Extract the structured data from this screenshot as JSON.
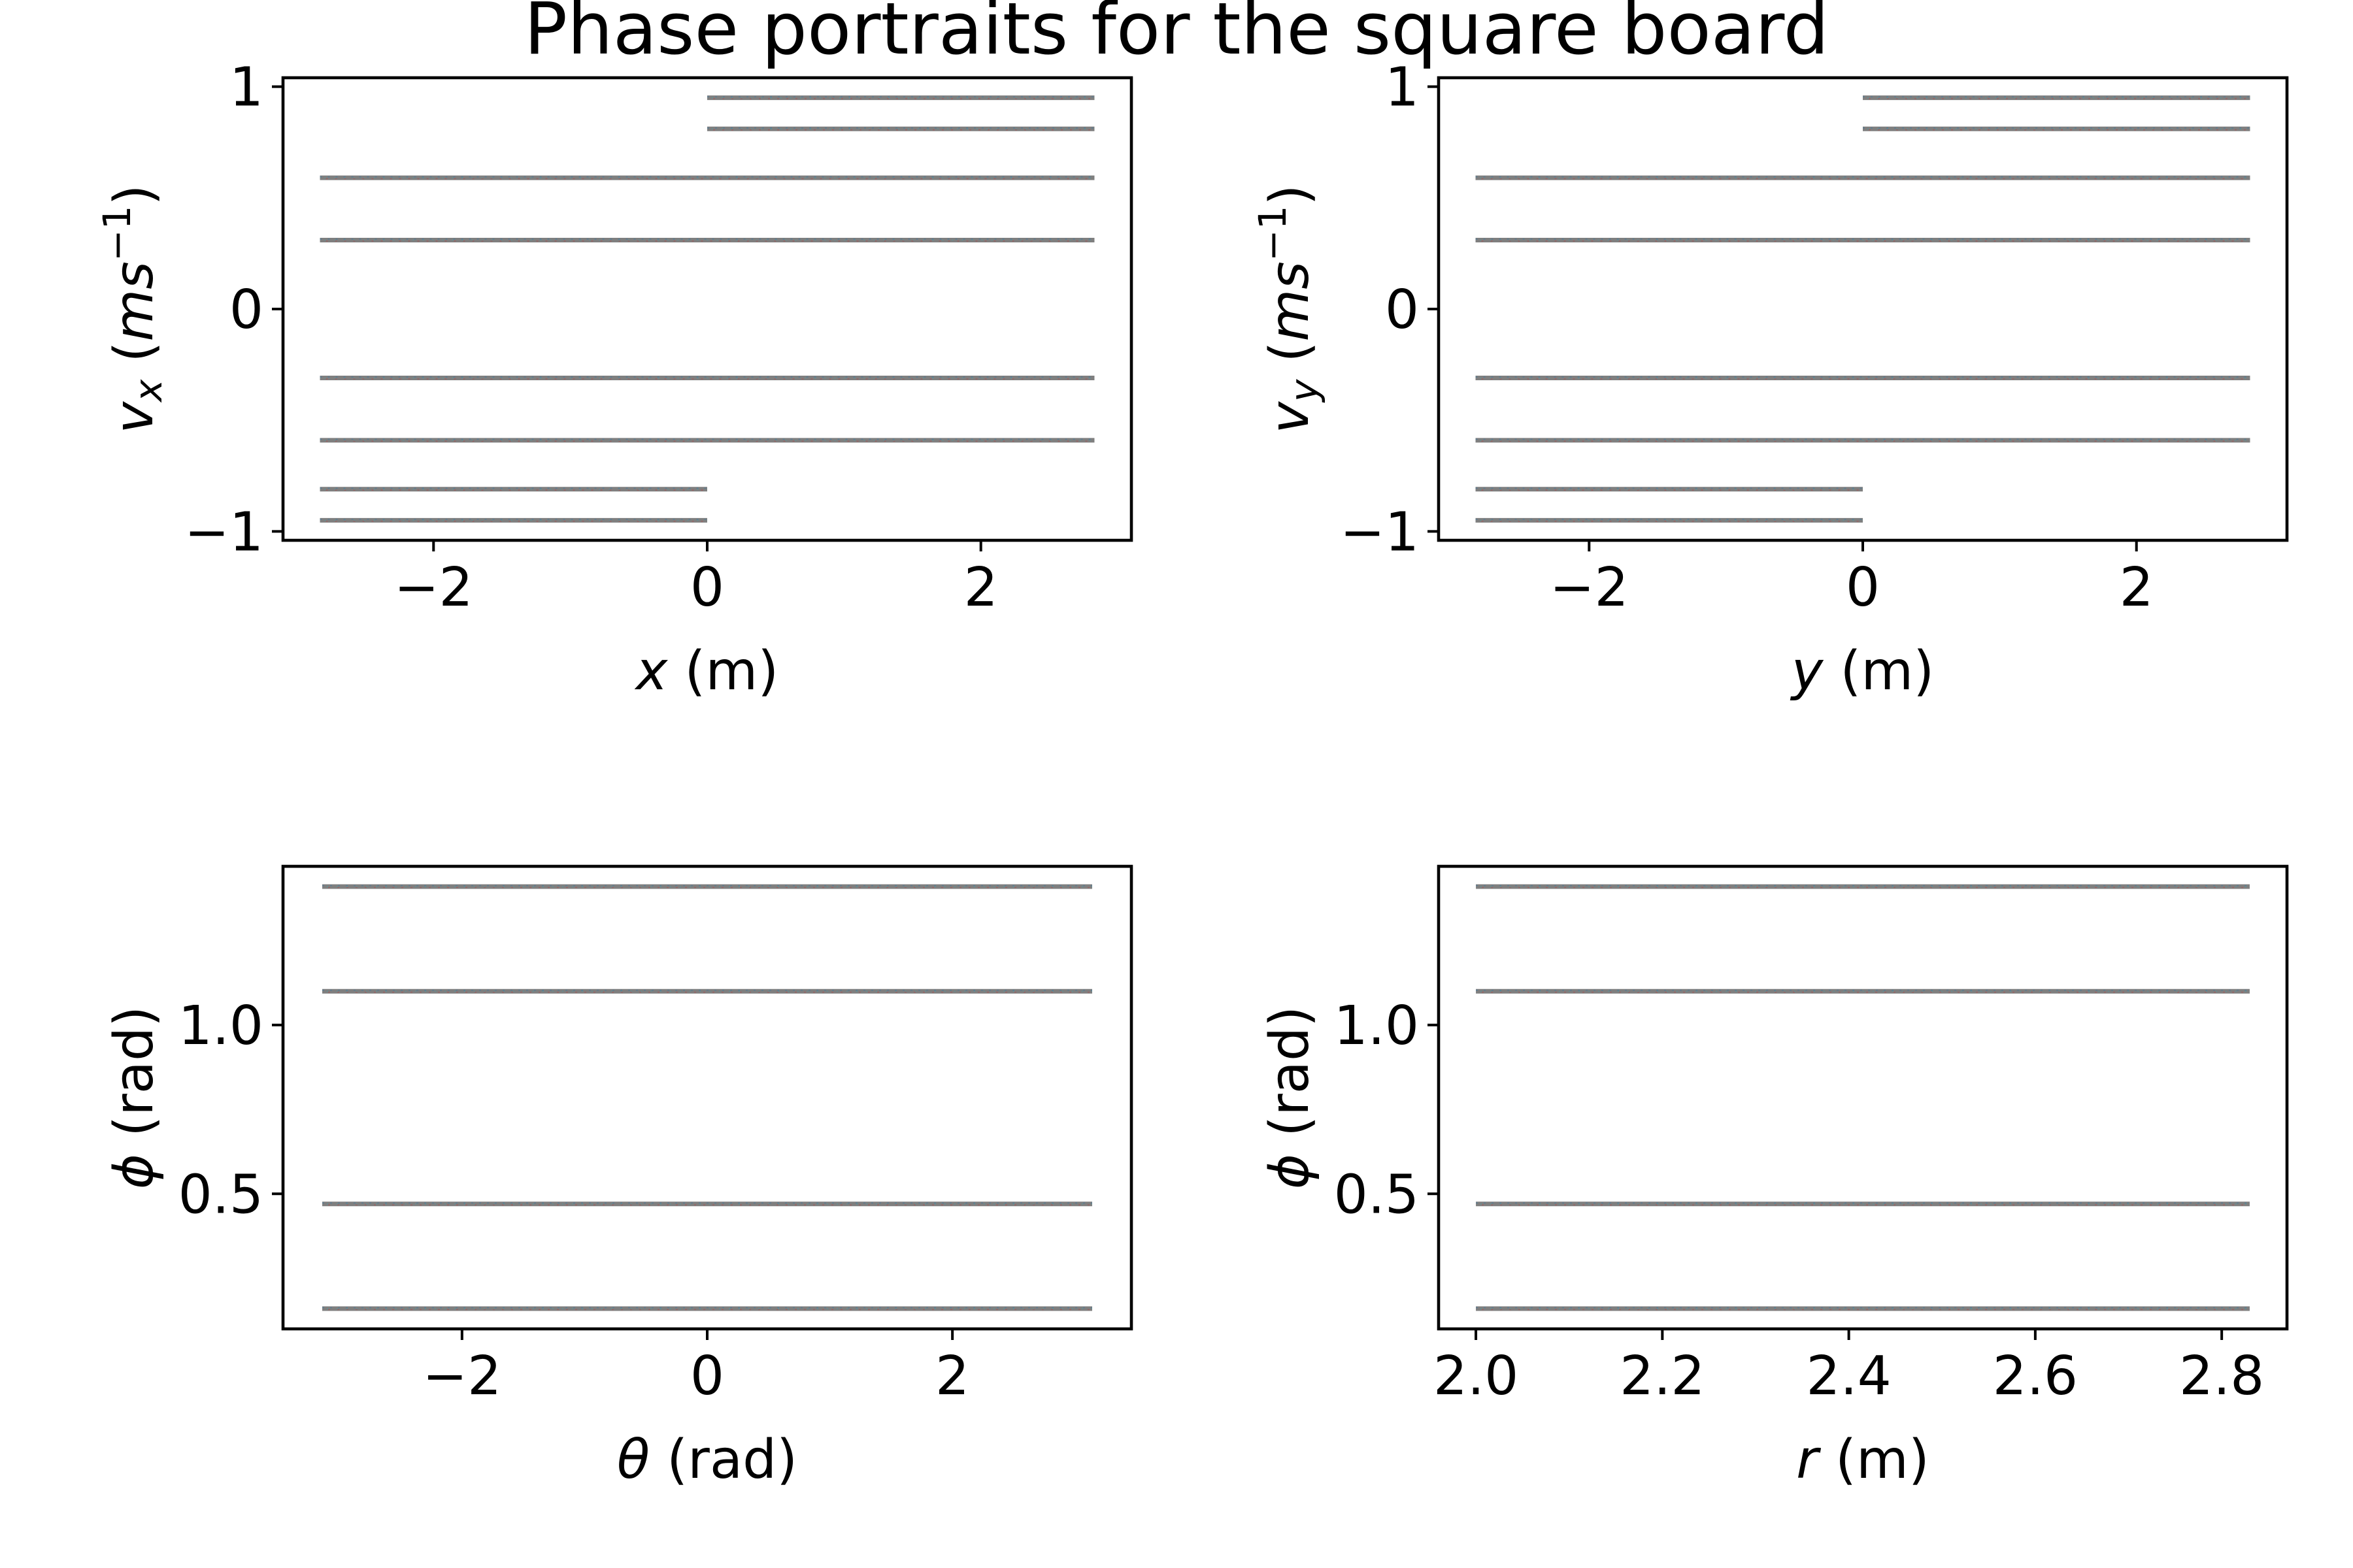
{
  "figure": {
    "title": "Phase portraits for the square board"
  },
  "colors": {
    "trajectory_main": "#7f7f7f",
    "trajectory_tint_a": "#1f77b4",
    "trajectory_tint_b": "#d62728",
    "trajectory_tint_c": "#17becf",
    "frame": "#000000"
  },
  "chart_data": [
    {
      "type": "scatter",
      "id": "vx_vs_x",
      "title": "",
      "xlabel": {
        "var": "x",
        "unit": "(m)"
      },
      "ylabel": {
        "var": "v",
        "sub": "x",
        "unit_open": "(ms",
        "unit_sup": "−1",
        "unit_close": ")"
      },
      "xlim": [
        -3.1,
        3.1
      ],
      "ylim": [
        -1.04,
        1.04
      ],
      "xticks": [
        {
          "v": -2,
          "label": "−2"
        },
        {
          "v": 0,
          "label": "0"
        },
        {
          "v": 2,
          "label": "2"
        }
      ],
      "yticks": [
        {
          "v": -1,
          "label": "−1"
        },
        {
          "v": 0,
          "label": "0"
        },
        {
          "v": 1,
          "label": "1"
        }
      ],
      "segments": [
        {
          "x0": 0.0,
          "x1": 2.83,
          "y": 0.95
        },
        {
          "x0": 0.0,
          "x1": 2.83,
          "y": 0.81
        },
        {
          "x0": -2.83,
          "x1": 2.83,
          "y": 0.59
        },
        {
          "x0": -2.83,
          "x1": 2.83,
          "y": 0.31
        },
        {
          "x0": -2.83,
          "x1": 2.83,
          "y": -0.31
        },
        {
          "x0": -2.83,
          "x1": 2.83,
          "y": -0.59
        },
        {
          "x0": -2.83,
          "x1": 0.0,
          "y": -0.81
        },
        {
          "x0": -2.83,
          "x1": 0.0,
          "y": -0.95
        }
      ]
    },
    {
      "type": "scatter",
      "id": "vy_vs_y",
      "title": "",
      "xlabel": {
        "var": "y",
        "unit": "(m)"
      },
      "ylabel": {
        "var": "v",
        "sub": "y",
        "unit_open": "(ms",
        "unit_sup": "−1",
        "unit_close": ")"
      },
      "xlim": [
        -3.1,
        3.1
      ],
      "ylim": [
        -1.04,
        1.04
      ],
      "xticks": [
        {
          "v": -2,
          "label": "−2"
        },
        {
          "v": 0,
          "label": "0"
        },
        {
          "v": 2,
          "label": "2"
        }
      ],
      "yticks": [
        {
          "v": -1,
          "label": "−1"
        },
        {
          "v": 0,
          "label": "0"
        },
        {
          "v": 1,
          "label": "1"
        }
      ],
      "segments": [
        {
          "x0": 0.0,
          "x1": 2.83,
          "y": 0.95
        },
        {
          "x0": 0.0,
          "x1": 2.83,
          "y": 0.81
        },
        {
          "x0": -2.83,
          "x1": 2.83,
          "y": 0.59
        },
        {
          "x0": -2.83,
          "x1": 2.83,
          "y": 0.31
        },
        {
          "x0": -2.83,
          "x1": 2.83,
          "y": -0.31
        },
        {
          "x0": -2.83,
          "x1": 2.83,
          "y": -0.59
        },
        {
          "x0": -2.83,
          "x1": 0.0,
          "y": -0.81
        },
        {
          "x0": -2.83,
          "x1": 0.0,
          "y": -0.95
        }
      ]
    },
    {
      "type": "scatter",
      "id": "phi_vs_theta",
      "title": "",
      "xlabel": {
        "var": "θ",
        "unit": "(rad)"
      },
      "ylabel": {
        "var": "ϕ",
        "sub": "",
        "unit_open": "(rad)",
        "unit_sup": "",
        "unit_close": ""
      },
      "xlim": [
        -3.46,
        3.46
      ],
      "ylim": [
        0.1,
        1.47
      ],
      "xticks": [
        {
          "v": -2,
          "label": "−2"
        },
        {
          "v": 0,
          "label": "0"
        },
        {
          "v": 2,
          "label": "2"
        }
      ],
      "yticks": [
        {
          "v": 0.5,
          "label": "0.5"
        },
        {
          "v": 1.0,
          "label": "1.0"
        }
      ],
      "segments": [
        {
          "x0": -3.14,
          "x1": 3.14,
          "y": 1.41
        },
        {
          "x0": -3.14,
          "x1": 3.14,
          "y": 1.1
        },
        {
          "x0": -3.14,
          "x1": 3.14,
          "y": 0.47
        },
        {
          "x0": -3.14,
          "x1": 3.14,
          "y": 0.16
        }
      ]
    },
    {
      "type": "scatter",
      "id": "phi_vs_r",
      "title": "",
      "xlabel": {
        "var": "r",
        "unit": "(m)"
      },
      "ylabel": {
        "var": "ϕ",
        "sub": "",
        "unit_open": "(rad)",
        "unit_sup": "",
        "unit_close": ""
      },
      "xlim": [
        1.96,
        2.87
      ],
      "ylim": [
        0.1,
        1.47
      ],
      "xticks": [
        {
          "v": 2.0,
          "label": "2.0"
        },
        {
          "v": 2.2,
          "label": "2.2"
        },
        {
          "v": 2.4,
          "label": "2.4"
        },
        {
          "v": 2.6,
          "label": "2.6"
        },
        {
          "v": 2.8,
          "label": "2.8"
        }
      ],
      "yticks": [
        {
          "v": 0.5,
          "label": "0.5"
        },
        {
          "v": 1.0,
          "label": "1.0"
        }
      ],
      "segments": [
        {
          "x0": 2.0,
          "x1": 2.83,
          "y": 1.41
        },
        {
          "x0": 2.0,
          "x1": 2.83,
          "y": 1.1
        },
        {
          "x0": 2.0,
          "x1": 2.83,
          "y": 0.47
        },
        {
          "x0": 2.0,
          "x1": 2.83,
          "y": 0.16
        }
      ]
    }
  ]
}
